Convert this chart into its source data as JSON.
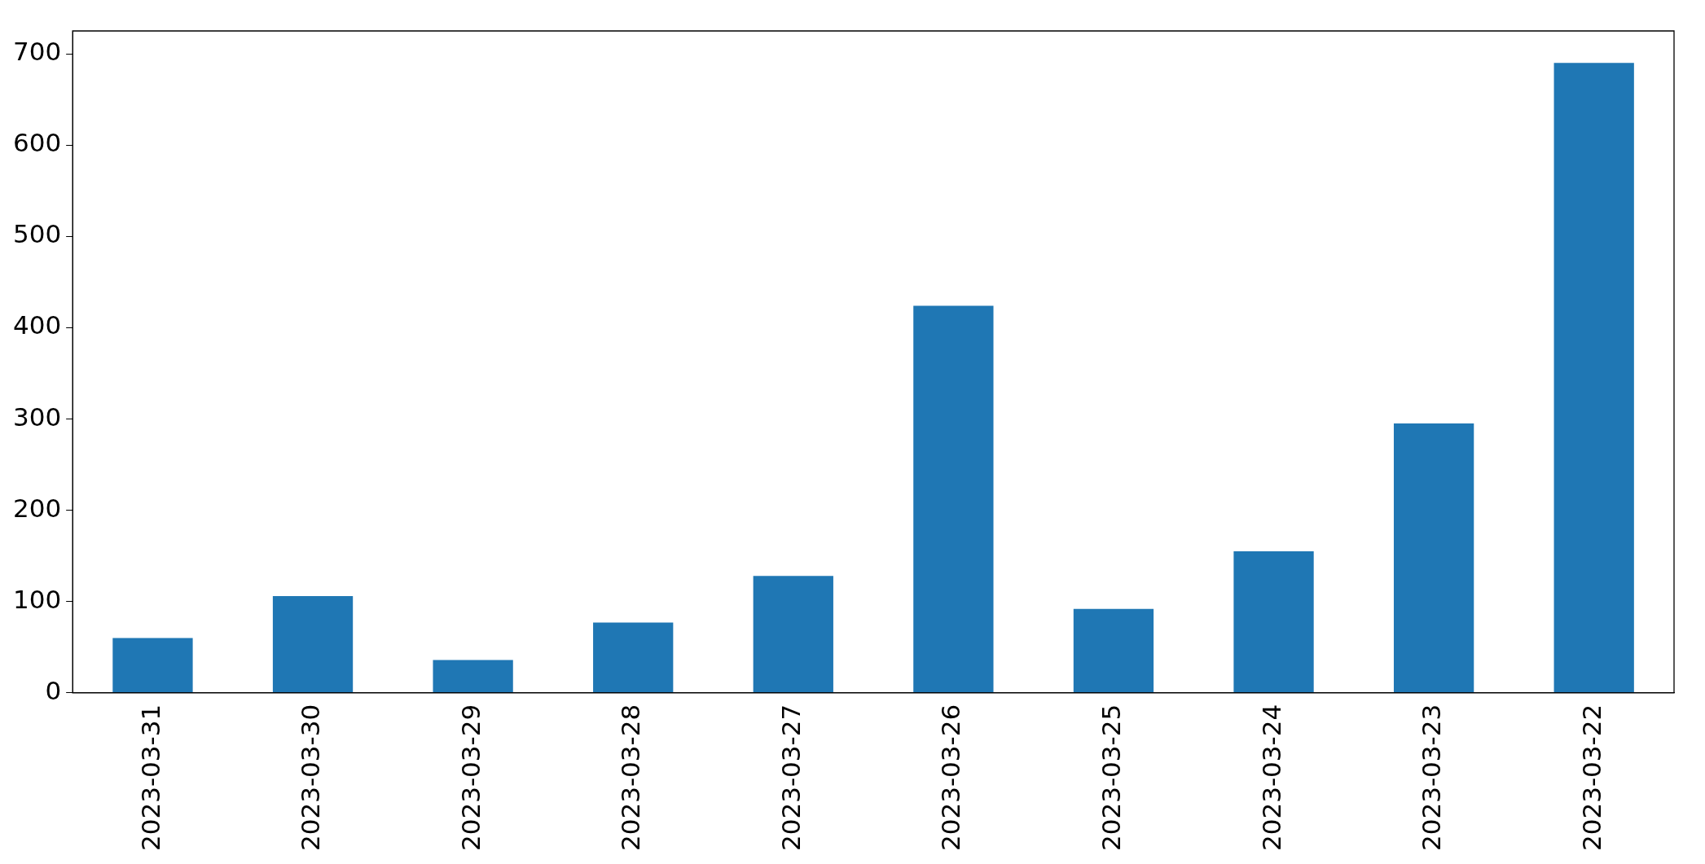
{
  "chart_data": {
    "type": "bar",
    "categories": [
      "2023-03-31",
      "2023-03-30",
      "2023-03-29",
      "2023-03-28",
      "2023-03-27",
      "2023-03-26",
      "2023-03-25",
      "2023-03-24",
      "2023-03-23",
      "2023-03-22"
    ],
    "values": [
      60,
      106,
      36,
      77,
      128,
      424,
      92,
      155,
      295,
      690
    ],
    "color": "#1f77b4",
    "ylim": [
      0,
      725
    ],
    "yticks": [
      0,
      100,
      200,
      300,
      400,
      500,
      600,
      700
    ],
    "grid": false,
    "legend": false
  }
}
